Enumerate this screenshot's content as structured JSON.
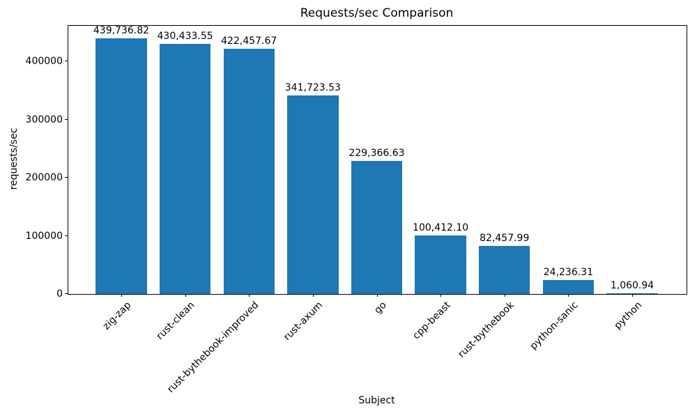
{
  "chart_data": {
    "type": "bar",
    "title": "Requests/sec Comparison",
    "xlabel": "Subject",
    "ylabel": "requests/sec",
    "categories": [
      "zig-zap",
      "rust-clean",
      "rust-bythebook-improved",
      "rust-axum",
      "go",
      "cpp-beast",
      "rust-bythebook",
      "python-sanic",
      "python"
    ],
    "values": [
      439736.82,
      430433.55,
      422457.67,
      341723.53,
      229366.63,
      100412.1,
      82457.99,
      24236.31,
      1060.94
    ],
    "value_labels": [
      "439,736.82",
      "430,433.55",
      "422,457.67",
      "341,723.53",
      "229,366.63",
      "100,412.10",
      "82,457.99",
      "24,236.31",
      "1,060.94"
    ],
    "ylim": [
      0,
      461724
    ],
    "yticks": [
      0,
      100000,
      200000,
      300000,
      400000
    ],
    "ytick_labels": [
      "0",
      "100000",
      "200000",
      "300000",
      "400000"
    ],
    "bar_color": "#1f77b4",
    "text_color": "#000000",
    "background_color": "#ffffff",
    "grid": false,
    "legend": null,
    "x_tick_rotation_deg": 45
  }
}
